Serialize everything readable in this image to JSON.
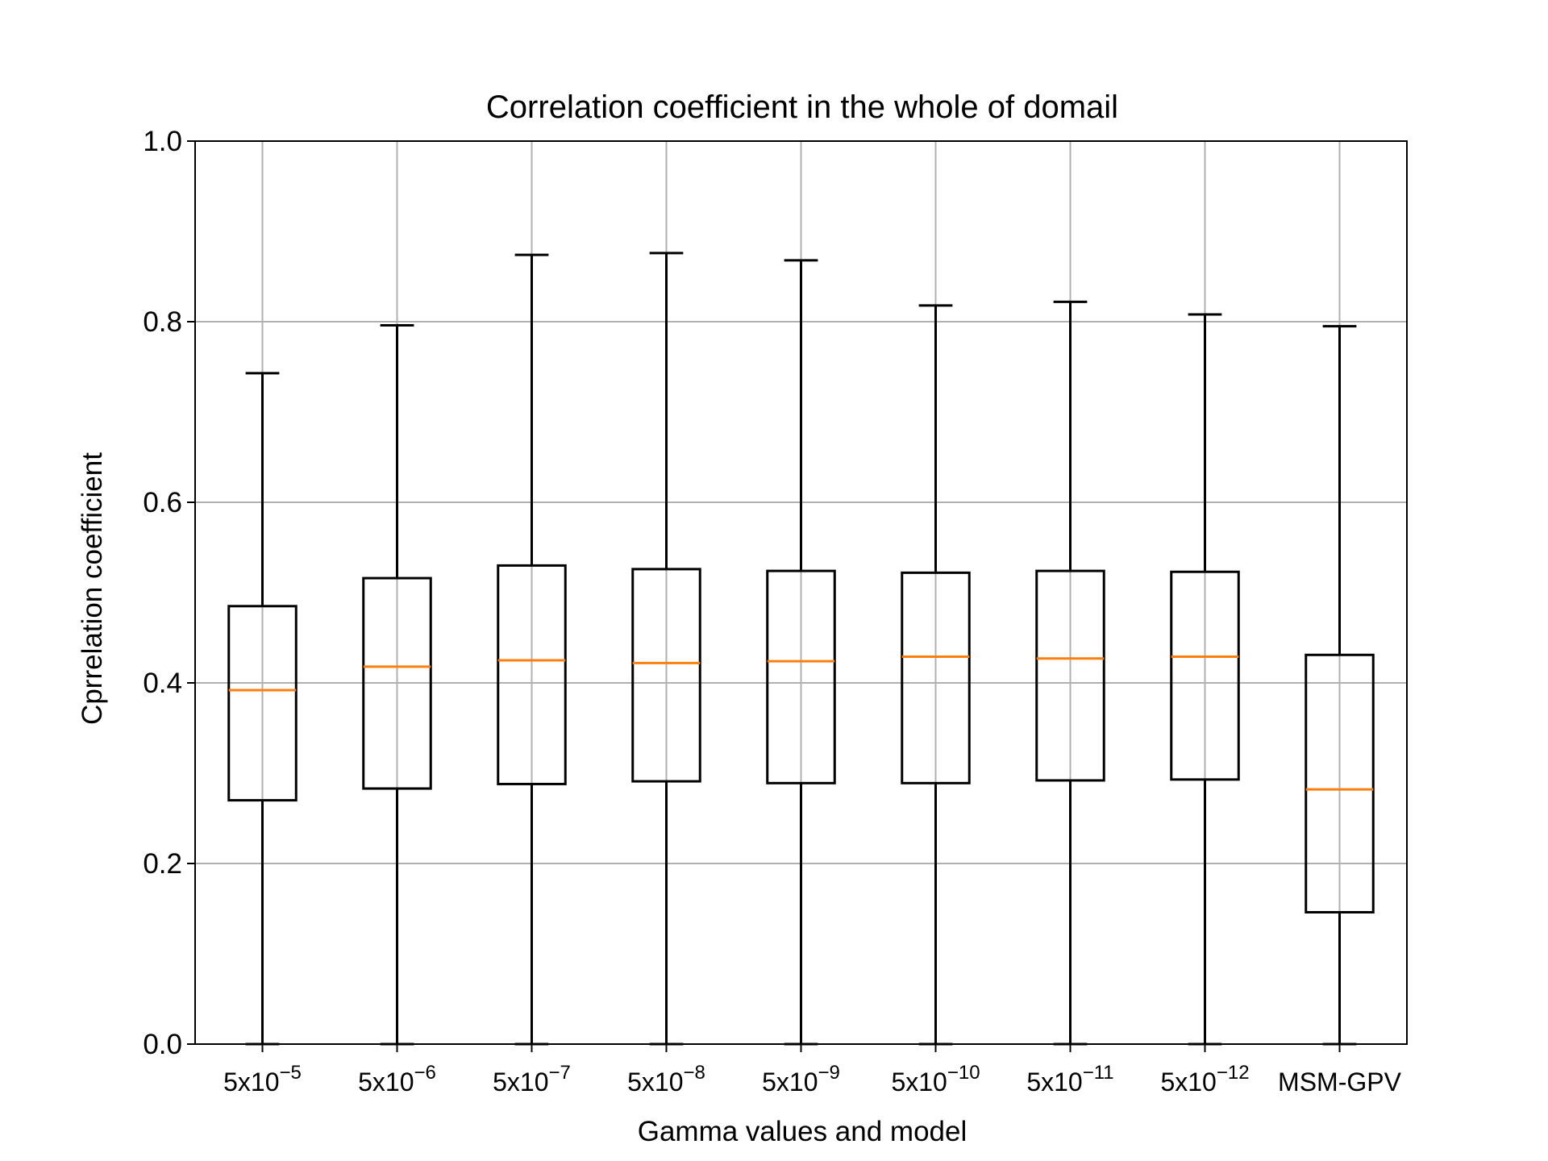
{
  "chart_data": {
    "type": "box",
    "title": "Correlation coefficient in the whole of domail",
    "xlabel": "Gamma values and model",
    "ylabel": "Cprrelation coefficient",
    "ylim": [
      0.0,
      1.0
    ],
    "yticks": [
      "0.0",
      "0.2",
      "0.4",
      "0.6",
      "0.8",
      "1.0"
    ],
    "ytick_values": [
      0.0,
      0.2,
      0.4,
      0.6,
      0.8,
      1.0
    ],
    "grid": true,
    "legend": "none",
    "colors": {
      "box": "#000000",
      "median": "#ff7f0e",
      "grid": "#b0b0b0"
    },
    "categories": [
      {
        "base": "5x10",
        "exp": "−5"
      },
      {
        "base": "5x10",
        "exp": "−6"
      },
      {
        "base": "5x10",
        "exp": "−7"
      },
      {
        "base": "5x10",
        "exp": "−8"
      },
      {
        "base": "5x10",
        "exp": "−9"
      },
      {
        "base": "5x10",
        "exp": "−10"
      },
      {
        "base": "5x10",
        "exp": "−11"
      },
      {
        "base": "5x10",
        "exp": "−12"
      },
      {
        "base": "MSM-GPV",
        "exp": ""
      }
    ],
    "boxes": [
      {
        "whisker_low": 0.0,
        "q1": 0.27,
        "median": 0.392,
        "q3": 0.485,
        "whisker_high": 0.743
      },
      {
        "whisker_low": 0.0,
        "q1": 0.283,
        "median": 0.418,
        "q3": 0.516,
        "whisker_high": 0.796
      },
      {
        "whisker_low": 0.0,
        "q1": 0.288,
        "median": 0.425,
        "q3": 0.53,
        "whisker_high": 0.874
      },
      {
        "whisker_low": 0.0,
        "q1": 0.291,
        "median": 0.422,
        "q3": 0.526,
        "whisker_high": 0.876
      },
      {
        "whisker_low": 0.0,
        "q1": 0.289,
        "median": 0.424,
        "q3": 0.524,
        "whisker_high": 0.868
      },
      {
        "whisker_low": 0.0,
        "q1": 0.289,
        "median": 0.429,
        "q3": 0.522,
        "whisker_high": 0.818
      },
      {
        "whisker_low": 0.0,
        "q1": 0.292,
        "median": 0.427,
        "q3": 0.524,
        "whisker_high": 0.822
      },
      {
        "whisker_low": 0.0,
        "q1": 0.293,
        "median": 0.429,
        "q3": 0.523,
        "whisker_high": 0.808
      },
      {
        "whisker_low": 0.0,
        "q1": 0.146,
        "median": 0.282,
        "q3": 0.431,
        "whisker_high": 0.795
      }
    ]
  }
}
